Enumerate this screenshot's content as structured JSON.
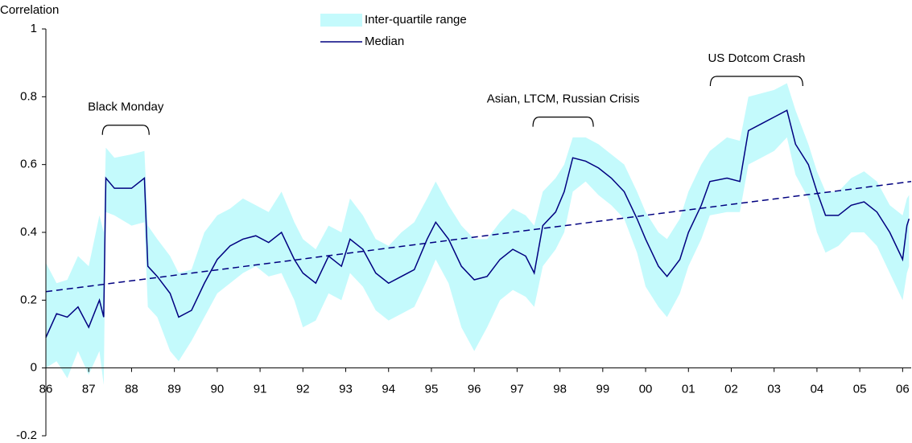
{
  "chart_data": {
    "type": "line",
    "y_label": "Correlation",
    "xlim": [
      1986,
      2006.2
    ],
    "ylim": [
      -0.2,
      1
    ],
    "yticks": [
      -0.2,
      0,
      0.2,
      0.4,
      0.6,
      0.8,
      1
    ],
    "xticks": [
      {
        "value": 1986,
        "label": "86"
      },
      {
        "value": 1987,
        "label": "87"
      },
      {
        "value": 1988,
        "label": "88"
      },
      {
        "value": 1989,
        "label": "89"
      },
      {
        "value": 1990,
        "label": "90"
      },
      {
        "value": 1991,
        "label": "91"
      },
      {
        "value": 1992,
        "label": "92"
      },
      {
        "value": 1993,
        "label": "93"
      },
      {
        "value": 1994,
        "label": "94"
      },
      {
        "value": 1995,
        "label": "95"
      },
      {
        "value": 1996,
        "label": "96"
      },
      {
        "value": 1997,
        "label": "97"
      },
      {
        "value": 1998,
        "label": "98"
      },
      {
        "value": 1999,
        "label": "99"
      },
      {
        "value": 2000,
        "label": "00"
      },
      {
        "value": 2001,
        "label": "01"
      },
      {
        "value": 2002,
        "label": "02"
      },
      {
        "value": 2003,
        "label": "03"
      },
      {
        "value": 2004,
        "label": "04"
      },
      {
        "value": 2005,
        "label": "05"
      },
      {
        "value": 2006,
        "label": "06"
      }
    ],
    "grid": false,
    "legend": "top",
    "x": [
      1986.0,
      1986.25,
      1986.5,
      1986.75,
      1987.0,
      1987.25,
      1987.35,
      1987.4,
      1987.6,
      1988.0,
      1988.3,
      1988.38,
      1988.6,
      1988.9,
      1989.1,
      1989.4,
      1989.7,
      1990.0,
      1990.3,
      1990.6,
      1990.9,
      1991.2,
      1991.5,
      1991.8,
      1992.0,
      1992.3,
      1992.6,
      1992.9,
      1993.1,
      1993.4,
      1993.7,
      1994.0,
      1994.3,
      1994.6,
      1994.9,
      1995.1,
      1995.4,
      1995.7,
      1996.0,
      1996.3,
      1996.6,
      1996.9,
      1997.2,
      1997.4,
      1997.6,
      1997.9,
      1998.1,
      1998.3,
      1998.6,
      1998.9,
      1999.2,
      1999.5,
      1999.8,
      2000.0,
      2000.3,
      2000.5,
      2000.8,
      2001.0,
      2001.3,
      2001.5,
      2001.9,
      2002.2,
      2002.4,
      2002.7,
      2003.0,
      2003.3,
      2003.5,
      2003.8,
      2004.0,
      2004.2,
      2004.5,
      2004.8,
      2005.1,
      2005.4,
      2005.7,
      2006.0,
      2006.1,
      2006.15
    ],
    "series": [
      {
        "name": "Inter-quartile range",
        "color": "#c4fafc",
        "kind": "band",
        "lower": [
          0.0,
          0.02,
          -0.03,
          0.05,
          -0.02,
          0.05,
          -0.05,
          0.46,
          0.45,
          0.42,
          0.43,
          0.18,
          0.15,
          0.05,
          0.02,
          0.08,
          0.15,
          0.22,
          0.25,
          0.28,
          0.3,
          0.27,
          0.28,
          0.2,
          0.12,
          0.14,
          0.22,
          0.2,
          0.28,
          0.24,
          0.17,
          0.14,
          0.16,
          0.18,
          0.26,
          0.32,
          0.25,
          0.12,
          0.05,
          0.12,
          0.2,
          0.23,
          0.21,
          0.18,
          0.3,
          0.35,
          0.4,
          0.52,
          0.55,
          0.51,
          0.48,
          0.44,
          0.34,
          0.24,
          0.18,
          0.15,
          0.22,
          0.3,
          0.38,
          0.45,
          0.46,
          0.46,
          0.6,
          0.62,
          0.64,
          0.68,
          0.57,
          0.5,
          0.4,
          0.34,
          0.36,
          0.4,
          0.4,
          0.36,
          0.28,
          0.2,
          0.28,
          0.3
        ],
        "upper": [
          0.31,
          0.25,
          0.26,
          0.33,
          0.3,
          0.45,
          0.4,
          0.65,
          0.62,
          0.63,
          0.64,
          0.42,
          0.38,
          0.33,
          0.28,
          0.29,
          0.4,
          0.45,
          0.47,
          0.5,
          0.48,
          0.46,
          0.52,
          0.43,
          0.38,
          0.35,
          0.42,
          0.4,
          0.5,
          0.45,
          0.38,
          0.36,
          0.4,
          0.43,
          0.5,
          0.55,
          0.48,
          0.42,
          0.38,
          0.38,
          0.43,
          0.47,
          0.45,
          0.42,
          0.52,
          0.56,
          0.6,
          0.68,
          0.68,
          0.66,
          0.63,
          0.6,
          0.52,
          0.46,
          0.4,
          0.38,
          0.44,
          0.52,
          0.6,
          0.64,
          0.68,
          0.67,
          0.8,
          0.81,
          0.82,
          0.84,
          0.76,
          0.66,
          0.58,
          0.52,
          0.52,
          0.56,
          0.58,
          0.55,
          0.48,
          0.45,
          0.5,
          0.51
        ]
      },
      {
        "name": "Median",
        "color": "#000080",
        "kind": "line",
        "values": [
          0.09,
          0.16,
          0.15,
          0.18,
          0.12,
          0.2,
          0.15,
          0.56,
          0.53,
          0.53,
          0.56,
          0.3,
          0.27,
          0.22,
          0.15,
          0.17,
          0.25,
          0.32,
          0.36,
          0.38,
          0.39,
          0.37,
          0.4,
          0.32,
          0.28,
          0.25,
          0.33,
          0.3,
          0.38,
          0.35,
          0.28,
          0.25,
          0.27,
          0.29,
          0.38,
          0.43,
          0.38,
          0.3,
          0.26,
          0.27,
          0.32,
          0.35,
          0.33,
          0.28,
          0.42,
          0.46,
          0.52,
          0.62,
          0.61,
          0.59,
          0.56,
          0.52,
          0.44,
          0.38,
          0.3,
          0.27,
          0.32,
          0.4,
          0.48,
          0.55,
          0.56,
          0.55,
          0.7,
          0.72,
          0.74,
          0.76,
          0.66,
          0.6,
          0.52,
          0.45,
          0.45,
          0.48,
          0.49,
          0.46,
          0.4,
          0.32,
          0.42,
          0.44
        ]
      }
    ],
    "trend": {
      "color": "#000080",
      "x": [
        1986,
        2006.2
      ],
      "values": [
        0.225,
        0.55
      ]
    },
    "annotations": [
      {
        "text": "Black Monday",
        "x": [
          1987.32,
          1988.41
        ],
        "y": 0.716
      },
      {
        "text": "Asian, LTCM, Russian Crisis",
        "x": [
          1997.37,
          1998.78
        ],
        "y": 0.74
      },
      {
        "text": "US Dotcom Crash",
        "x": [
          2001.51,
          2003.67
        ],
        "y": 0.86
      }
    ]
  }
}
